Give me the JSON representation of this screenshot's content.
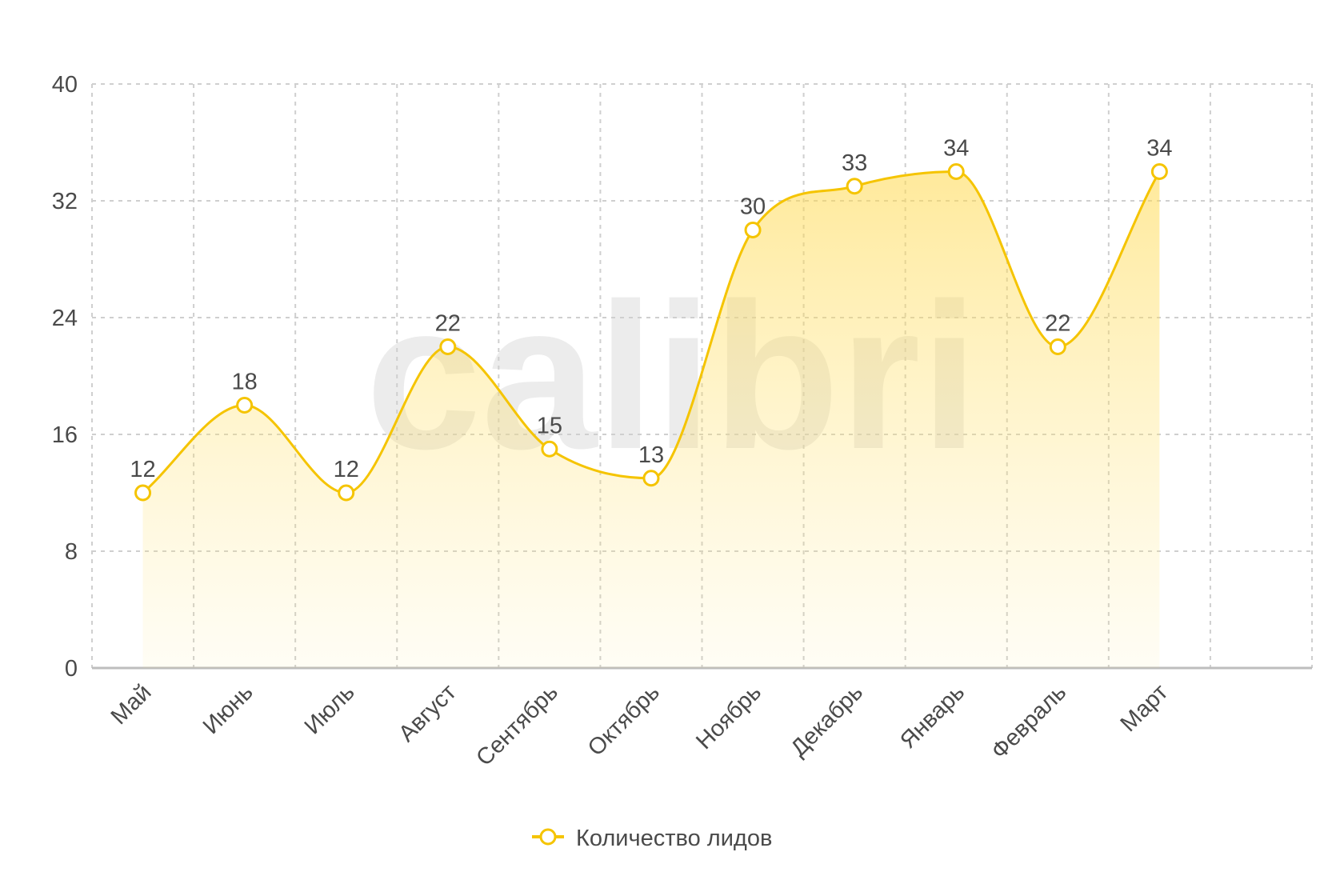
{
  "watermark": "calibri",
  "chart_data": {
    "type": "area",
    "categories": [
      "Май",
      "Июнь",
      "Июль",
      "Август",
      "Сентябрь",
      "Октябрь",
      "Ноябрь",
      "Декабрь",
      "Январь",
      "Февраль",
      "Март"
    ],
    "series": [
      {
        "name": "Количество лидов",
        "values": [
          12,
          18,
          12,
          22,
          15,
          13,
          30,
          33,
          34,
          22,
          34
        ]
      }
    ],
    "yticks": [
      "0",
      "8",
      "16",
      "24",
      "32",
      "40"
    ],
    "ylim": [
      0,
      40
    ],
    "smooth": true,
    "grid": true,
    "show_data_labels": true,
    "legend_position": "bottom",
    "x_tick_rotation": -45,
    "colors": {
      "line": "#F5C400",
      "fill_top": "#FFD84A",
      "grid": "#cfcfcf",
      "axis": "#bdbdbd",
      "marker_fill": "#ffffff"
    }
  }
}
